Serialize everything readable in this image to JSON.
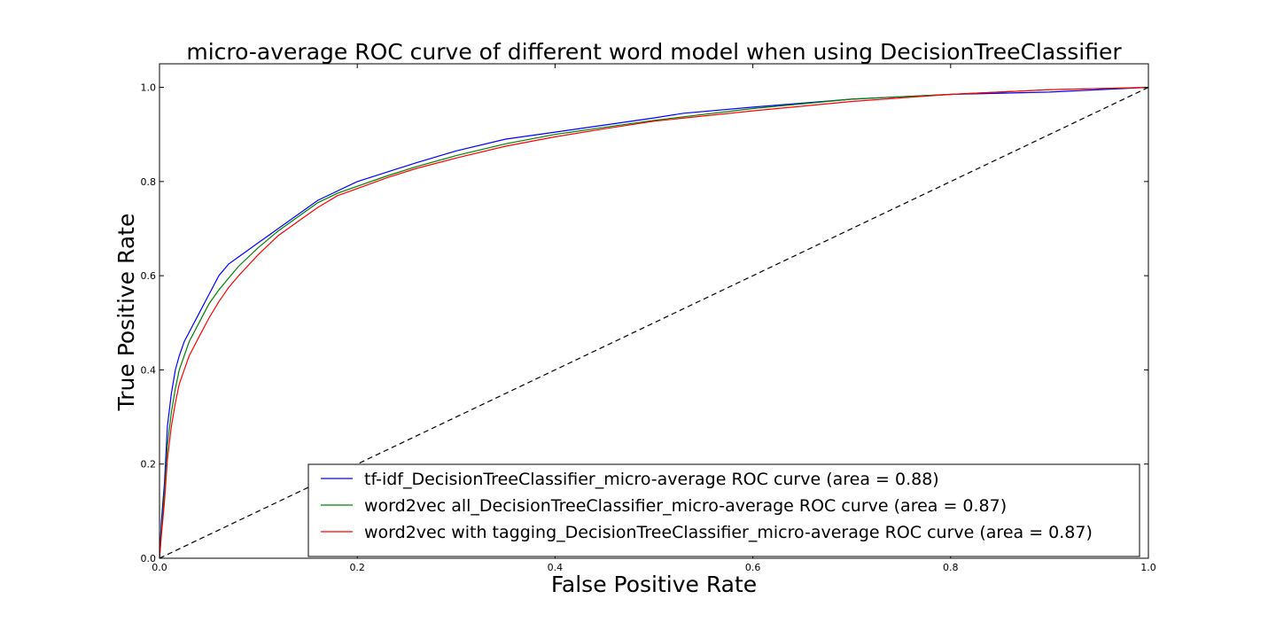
{
  "chart_data": {
    "type": "line",
    "title": "micro-average ROC curve of different word model when using DecisionTreeClassifier",
    "xlabel": "False Positive Rate",
    "ylabel": "True Positive Rate",
    "xlim": [
      0.0,
      1.0
    ],
    "ylim": [
      0.0,
      1.05
    ],
    "xticks": [
      0.0,
      0.2,
      0.4,
      0.6,
      0.8,
      1.0
    ],
    "xtick_labels": [
      "0.0",
      "0.2",
      "0.4",
      "0.6",
      "0.8",
      "1.0"
    ],
    "yticks": [
      0.0,
      0.2,
      0.4,
      0.6,
      0.8,
      1.0
    ],
    "ytick_labels": [
      "0.0",
      "0.2",
      "0.4",
      "0.6",
      "0.8",
      "1.0"
    ],
    "grid": false,
    "legend_position": "lower-right",
    "series": [
      {
        "name": "tf-idf_DecisionTreeClassifier_micro-average ROC curve (area = 0.88)",
        "color": "#0000ff",
        "x": [
          0.0,
          0.002,
          0.005,
          0.008,
          0.012,
          0.016,
          0.02,
          0.025,
          0.03,
          0.04,
          0.05,
          0.06,
          0.07,
          0.08,
          0.1,
          0.12,
          0.14,
          0.16,
          0.18,
          0.2,
          0.23,
          0.26,
          0.3,
          0.35,
          0.4,
          0.45,
          0.5,
          0.53,
          0.6,
          0.7,
          0.8,
          0.9,
          1.0
        ],
        "y": [
          0.0,
          0.08,
          0.16,
          0.28,
          0.35,
          0.4,
          0.43,
          0.46,
          0.48,
          0.52,
          0.56,
          0.6,
          0.625,
          0.64,
          0.67,
          0.7,
          0.73,
          0.76,
          0.78,
          0.8,
          0.82,
          0.84,
          0.865,
          0.89,
          0.905,
          0.92,
          0.935,
          0.945,
          0.958,
          0.975,
          0.985,
          0.99,
          1.0
        ],
        "style": "solid"
      },
      {
        "name": "word2vec all_DecisionTreeClassifier_micro-average ROC curve (area = 0.87)",
        "color": "#008000",
        "x": [
          0.0,
          0.002,
          0.005,
          0.008,
          0.012,
          0.016,
          0.02,
          0.025,
          0.03,
          0.04,
          0.05,
          0.06,
          0.07,
          0.08,
          0.1,
          0.12,
          0.14,
          0.16,
          0.18,
          0.2,
          0.23,
          0.26,
          0.3,
          0.35,
          0.4,
          0.45,
          0.5,
          0.6,
          0.7,
          0.8,
          0.9,
          1.0
        ],
        "y": [
          0.0,
          0.06,
          0.14,
          0.24,
          0.31,
          0.36,
          0.4,
          0.43,
          0.46,
          0.5,
          0.54,
          0.57,
          0.595,
          0.62,
          0.66,
          0.695,
          0.725,
          0.755,
          0.775,
          0.79,
          0.812,
          0.832,
          0.855,
          0.88,
          0.9,
          0.915,
          0.93,
          0.955,
          0.975,
          0.985,
          0.995,
          1.0
        ],
        "style": "solid"
      },
      {
        "name": "word2vec with tagging_DecisionTreeClassifier_micro-average ROC curve (area = 0.87)",
        "color": "#ff0000",
        "x": [
          0.0,
          0.002,
          0.005,
          0.008,
          0.012,
          0.016,
          0.02,
          0.025,
          0.03,
          0.04,
          0.05,
          0.06,
          0.07,
          0.08,
          0.1,
          0.12,
          0.14,
          0.16,
          0.18,
          0.2,
          0.23,
          0.26,
          0.3,
          0.35,
          0.4,
          0.45,
          0.5,
          0.6,
          0.7,
          0.8,
          0.9,
          1.0
        ],
        "y": [
          0.0,
          0.05,
          0.12,
          0.21,
          0.28,
          0.33,
          0.37,
          0.4,
          0.43,
          0.47,
          0.51,
          0.545,
          0.575,
          0.6,
          0.645,
          0.685,
          0.715,
          0.745,
          0.77,
          0.785,
          0.808,
          0.828,
          0.85,
          0.875,
          0.895,
          0.912,
          0.928,
          0.95,
          0.97,
          0.985,
          0.995,
          1.0
        ],
        "style": "solid"
      },
      {
        "name": "",
        "color": "#000000",
        "x": [
          0.0,
          1.0
        ],
        "y": [
          0.0,
          1.0
        ],
        "style": "dashed"
      }
    ]
  }
}
